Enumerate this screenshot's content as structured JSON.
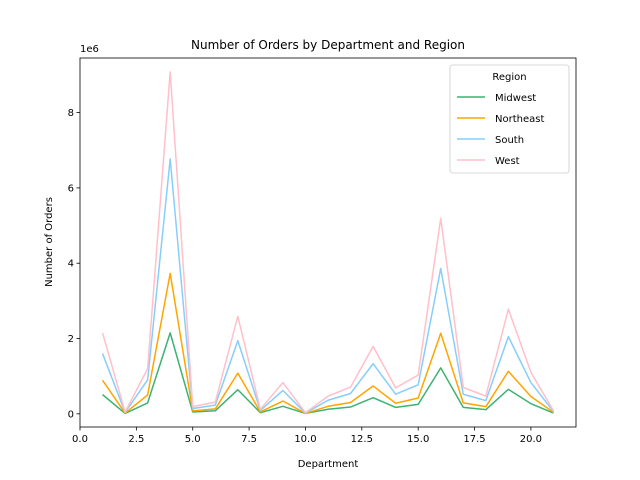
{
  "chart_data": {
    "type": "line",
    "title": "Number of Orders by Department and Region",
    "xlabel": "Department",
    "ylabel": "Number of Orders",
    "y_offset_label": "1e6",
    "xlim": [
      0,
      22
    ],
    "ylim": [
      -0.35,
      9.45
    ],
    "x_ticks": [
      0.0,
      2.5,
      5.0,
      7.5,
      10.0,
      12.5,
      15.0,
      17.5,
      20.0
    ],
    "x_tick_labels": [
      "0.0",
      "2.5",
      "5.0",
      "7.5",
      "10.0",
      "12.5",
      "15.0",
      "17.5",
      "20.0"
    ],
    "y_ticks": [
      0,
      2,
      4,
      6,
      8
    ],
    "y_tick_labels": [
      "0",
      "2",
      "4",
      "6",
      "8"
    ],
    "grid": false,
    "legend": {
      "title": "Region",
      "placement": "top-right"
    },
    "x": [
      1,
      2,
      3,
      4,
      5,
      6,
      7,
      8,
      9,
      10,
      11,
      12,
      13,
      14,
      15,
      16,
      17,
      18,
      19,
      20,
      21
    ],
    "series": [
      {
        "name": "Midwest",
        "color": "#3cb371",
        "values": [
          0.51,
          0.01,
          0.29,
          2.15,
          0.05,
          0.08,
          0.64,
          0.03,
          0.2,
          0.01,
          0.12,
          0.18,
          0.43,
          0.17,
          0.25,
          1.22,
          0.17,
          0.11,
          0.65,
          0.27,
          0.02
        ]
      },
      {
        "name": "Northeast",
        "color": "#ffa500",
        "values": [
          0.89,
          0.02,
          0.5,
          3.73,
          0.08,
          0.13,
          1.08,
          0.05,
          0.34,
          0.01,
          0.2,
          0.3,
          0.74,
          0.28,
          0.42,
          2.14,
          0.29,
          0.19,
          1.13,
          0.46,
          0.04
        ]
      },
      {
        "name": "South",
        "color": "#87cefa",
        "values": [
          1.6,
          0.04,
          0.9,
          6.77,
          0.14,
          0.23,
          1.94,
          0.09,
          0.62,
          0.02,
          0.36,
          0.54,
          1.33,
          0.52,
          0.77,
          3.86,
          0.52,
          0.35,
          2.05,
          0.83,
          0.06
        ]
      },
      {
        "name": "West",
        "color": "#ffc0cb",
        "values": [
          2.15,
          0.05,
          1.2,
          9.08,
          0.19,
          0.31,
          2.59,
          0.12,
          0.83,
          0.03,
          0.47,
          0.71,
          1.79,
          0.69,
          1.03,
          5.19,
          0.7,
          0.47,
          2.78,
          1.1,
          0.08
        ]
      }
    ]
  }
}
